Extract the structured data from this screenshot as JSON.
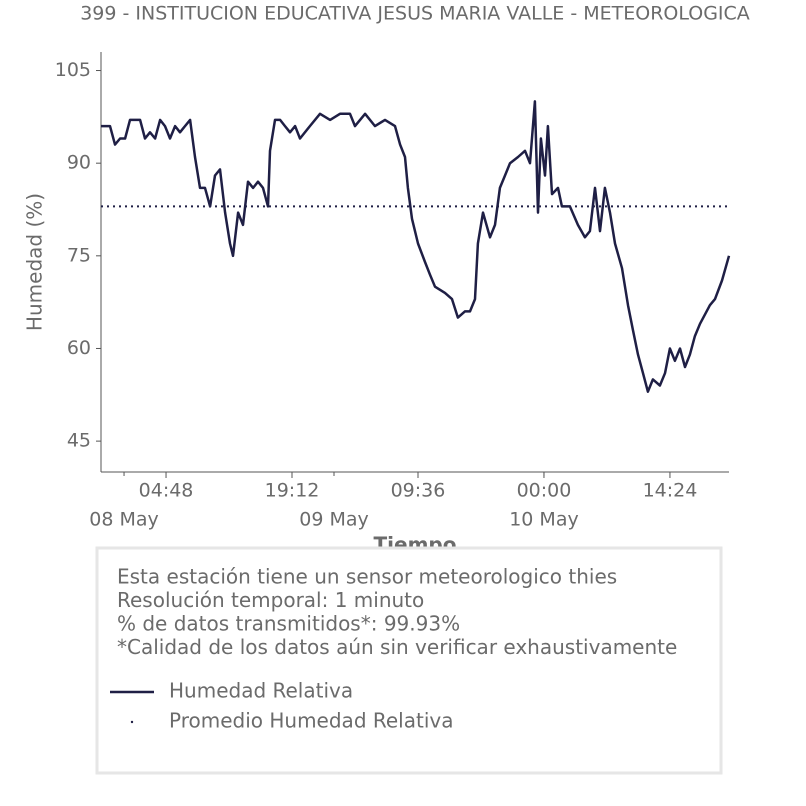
{
  "chart_data": {
    "type": "line",
    "title": "399 - INSTITUCION EDUCATIVA JESUS MARIA VALLE - METEOROLOGICA",
    "y_label": "Humedad (%)",
    "x_label": "Tiempo",
    "notes": [
      "Esta estación tiene un sensor meteorologico thies",
      "Resolución temporal: 1 minuto",
      "% de datos transmitidos*: 99.93%",
      "*Calidad de los datos aún sin verificar exhaustivamente"
    ],
    "x": [
      "07 May 21:22",
      "07 May 22:24",
      "07 May 22:58",
      "07 May 23:33",
      "08 May 00:07",
      "08 May 00:41",
      "08 May 01:50",
      "08 May 02:24",
      "08 May 02:58",
      "08 May 03:33",
      "08 May 04:07",
      "08 May 04:41",
      "08 May 05:15",
      "08 May 05:50",
      "08 May 06:24",
      "08 May 06:58",
      "08 May 07:33",
      "08 May 08:07",
      "08 May 08:41",
      "08 May 09:15",
      "08 May 09:50",
      "08 May 10:24",
      "08 May 10:58",
      "08 May 11:33",
      "08 May 12:07",
      "08 May 12:27",
      "08 May 13:02",
      "08 May 13:36",
      "08 May 14:10",
      "08 May 14:45",
      "08 May 15:19",
      "08 May 15:53",
      "08 May 16:27",
      "08 May 16:41",
      "08 May 17:15",
      "08 May 17:50",
      "08 May 18:24",
      "08 May 18:58",
      "08 May 19:33",
      "08 May 20:07",
      "08 May 21:15",
      "08 May 22:24",
      "08 May 23:33",
      "09 May 00:41",
      "09 May 01:50",
      "09 May 02:24",
      "09 May 03:33",
      "09 May 04:41",
      "09 May 05:50",
      "09 May 06:58",
      "09 May 07:33",
      "09 May 08:07",
      "09 May 08:27",
      "09 May 08:55",
      "09 May 09:36",
      "09 May 10:24",
      "09 May 10:58",
      "09 May 11:33",
      "09 May 12:41",
      "09 May 13:29",
      "09 May 14:10",
      "09 May 14:58",
      "09 May 15:33",
      "09 May 16:07",
      "09 May 16:27",
      "09 May 17:02",
      "09 May 17:50",
      "09 May 18:24",
      "09 May 18:58",
      "09 May 19:33",
      "09 May 20:07",
      "09 May 21:02",
      "09 May 21:50",
      "09 May 22:24",
      "09 May 22:58",
      "09 May 23:19",
      "09 May 23:39",
      "10 May 00:07",
      "10 May 00:27",
      "10 May 00:55",
      "10 May 01:36",
      "10 May 02:03",
      "10 May 02:58",
      "10 May 03:53",
      "10 May 04:41",
      "10 May 05:15",
      "10 May 05:50",
      "10 May 06:24",
      "10 May 06:58",
      "10 May 07:33",
      "10 May 08:07",
      "10 May 08:55",
      "10 May 09:36",
      "10 May 10:10",
      "10 May 10:45",
      "10 May 11:19",
      "10 May 11:53",
      "10 May 12:27",
      "10 May 13:15",
      "10 May 13:50",
      "10 May 14:24",
      "10 May 14:58",
      "10 May 15:33",
      "10 May 16:07",
      "10 May 16:41",
      "10 May 17:15",
      "10 May 17:50",
      "10 May 18:58",
      "10 May 19:33",
      "10 May 20:21",
      "10 May 21:09"
    ],
    "series": [
      {
        "name": "Humedad Relativa",
        "color": "#1f1f45",
        "values": [
          96,
          96,
          93,
          94,
          94,
          97,
          97,
          94,
          95,
          94,
          97,
          96,
          94,
          96,
          95,
          96,
          97,
          91,
          86,
          86,
          83,
          88,
          89,
          82,
          77,
          75,
          82,
          80,
          87,
          86,
          87,
          86,
          83,
          92,
          97,
          97,
          96,
          95,
          96,
          94,
          96,
          98,
          97,
          98,
          98,
          96,
          98,
          96,
          97,
          96,
          93,
          91,
          86,
          81,
          77,
          74,
          72,
          70,
          69,
          68,
          65,
          66,
          66,
          68,
          77,
          82,
          78,
          80,
          86,
          88,
          90,
          91,
          92,
          90,
          100,
          82,
          94,
          88,
          96,
          85,
          86,
          83,
          83,
          80,
          78,
          79,
          86,
          79,
          86,
          82,
          77,
          73,
          67,
          63,
          59,
          56,
          53,
          55,
          54,
          56,
          60,
          58,
          60,
          57,
          59,
          62,
          64,
          67,
          68,
          71,
          75
        ]
      }
    ],
    "average": {
      "name": "Promedio Humedad Relativa",
      "value": 83,
      "color": "#1f1f45"
    },
    "xlim": [
      "07 May 21:22",
      "10 May 21:09"
    ],
    "xticks": [
      {
        "value": "08 May 04:48",
        "label": "04:48"
      },
      {
        "value": "08 May 19:12",
        "label": "19:12"
      },
      {
        "value": "09 May 09:36",
        "label": "09:36"
      },
      {
        "value": "10 May 00:00",
        "label": "00:00"
      },
      {
        "value": "10 May 14:24",
        "label": "14:24"
      }
    ],
    "xticks_minor": [
      {
        "value": "08 May 00:00",
        "label": "08 May"
      },
      {
        "value": "09 May 00:00",
        "label": "09 May"
      },
      {
        "value": "10 May 00:00",
        "label": "10 May"
      }
    ],
    "ylim": [
      40,
      108
    ],
    "yticks": [
      45,
      60,
      75,
      90,
      105
    ]
  }
}
